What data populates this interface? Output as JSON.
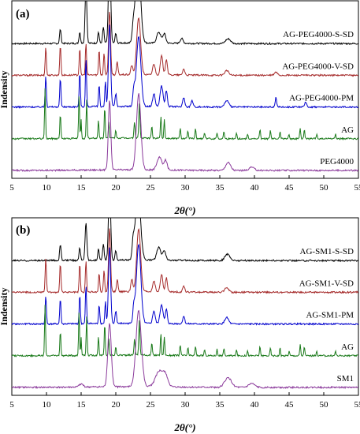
{
  "chart_data": [
    {
      "type": "line",
      "panel_label": "(a)",
      "xlabel": "2θ(°)",
      "ylabel": "Indensity",
      "xlim": [
        5,
        55
      ],
      "x_ticks": [
        5,
        10,
        15,
        20,
        25,
        30,
        35,
        40,
        45,
        50,
        55
      ],
      "grid": false,
      "legend": "labels above each trace, right side",
      "series": [
        {
          "name": "AG-PEG4000-S-SD",
          "color": "#000000",
          "baseline": 4.2,
          "peaks": [
            [
              12.0,
              0.45,
              0.15
            ],
            [
              14.8,
              0.35,
              0.15
            ],
            [
              15.7,
              1.8,
              0.18
            ],
            [
              17.5,
              0.35,
              0.15
            ],
            [
              18.2,
              0.5,
              0.15
            ],
            [
              19.1,
              3.0,
              0.22
            ],
            [
              20.0,
              0.3,
              0.15
            ],
            [
              22.5,
              0.4,
              0.2
            ],
            [
              23.2,
              2.8,
              0.5
            ],
            [
              26.2,
              0.35,
              0.4
            ],
            [
              27.0,
              0.3,
              0.3
            ],
            [
              29.5,
              0.15,
              0.3
            ],
            [
              36.2,
              0.15,
              0.5
            ]
          ]
        },
        {
          "name": "AG-PEG4000-V-SD",
          "color": "#a52a2a",
          "baseline": 3.2,
          "peaks": [
            [
              9.9,
              0.9,
              0.12
            ],
            [
              12.0,
              0.95,
              0.12
            ],
            [
              14.8,
              0.85,
              0.12
            ],
            [
              15.7,
              1.0,
              0.12
            ],
            [
              17.6,
              0.8,
              0.12
            ],
            [
              18.3,
              0.7,
              0.12
            ],
            [
              19.1,
              2.0,
              0.2
            ],
            [
              20.2,
              0.4,
              0.15
            ],
            [
              22.3,
              0.3,
              0.2
            ],
            [
              23.3,
              1.8,
              0.4
            ],
            [
              25.5,
              0.35,
              0.25
            ],
            [
              26.6,
              0.6,
              0.25
            ],
            [
              27.3,
              0.5,
              0.2
            ],
            [
              29.8,
              0.2,
              0.2
            ],
            [
              36.0,
              0.15,
              0.4
            ],
            [
              43.1,
              0.1,
              0.3
            ]
          ]
        },
        {
          "name": "AG-PEG4000-PM",
          "color": "#0000cd",
          "baseline": 2.2,
          "peaks": [
            [
              9.9,
              1.0,
              0.12
            ],
            [
              12.0,
              0.9,
              0.12
            ],
            [
              14.8,
              1.1,
              0.12
            ],
            [
              15.7,
              1.5,
              0.12
            ],
            [
              17.6,
              0.7,
              0.12
            ],
            [
              18.5,
              0.8,
              0.12
            ],
            [
              19.1,
              2.6,
              0.22
            ],
            [
              20.0,
              0.4,
              0.15
            ],
            [
              22.6,
              0.5,
              0.2
            ],
            [
              23.3,
              2.2,
              0.45
            ],
            [
              25.5,
              0.4,
              0.25
            ],
            [
              26.6,
              0.65,
              0.3
            ],
            [
              27.3,
              0.5,
              0.2
            ],
            [
              29.8,
              0.3,
              0.2
            ],
            [
              31.0,
              0.2,
              0.2
            ],
            [
              36.0,
              0.2,
              0.4
            ],
            [
              43.1,
              0.3,
              0.15
            ],
            [
              47.4,
              0.15,
              0.2
            ]
          ]
        },
        {
          "name": "AG",
          "color": "#1a7a1a",
          "baseline": 1.2,
          "peaks": [
            [
              9.8,
              1.6,
              0.1
            ],
            [
              12.0,
              0.8,
              0.1
            ],
            [
              14.7,
              1.4,
              0.1
            ],
            [
              15.0,
              0.6,
              0.08
            ],
            [
              15.8,
              1.2,
              0.1
            ],
            [
              17.5,
              0.6,
              0.1
            ],
            [
              18.4,
              1.0,
              0.1
            ],
            [
              19.0,
              0.5,
              0.1
            ],
            [
              20.0,
              0.25,
              0.1
            ],
            [
              22.7,
              0.5,
              0.12
            ],
            [
              23.4,
              1.1,
              0.12
            ],
            [
              25.2,
              0.4,
              0.1
            ],
            [
              26.5,
              0.7,
              0.1
            ],
            [
              27.0,
              0.6,
              0.1
            ],
            [
              29.3,
              0.35,
              0.1
            ],
            [
              30.4,
              0.25,
              0.1
            ],
            [
              31.5,
              0.3,
              0.1
            ],
            [
              32.8,
              0.2,
              0.1
            ],
            [
              34.6,
              0.2,
              0.1
            ],
            [
              35.6,
              0.25,
              0.1
            ],
            [
              37.4,
              0.2,
              0.1
            ],
            [
              39.0,
              0.15,
              0.1
            ],
            [
              40.8,
              0.3,
              0.1
            ],
            [
              42.3,
              0.25,
              0.1
            ],
            [
              43.7,
              0.25,
              0.1
            ],
            [
              45.0,
              0.15,
              0.1
            ],
            [
              46.6,
              0.35,
              0.1
            ],
            [
              47.2,
              0.3,
              0.1
            ],
            [
              49.0,
              0.15,
              0.1
            ],
            [
              51.7,
              0.15,
              0.1
            ]
          ]
        },
        {
          "name": "PEG4000",
          "color": "#8b3a9b",
          "baseline": 0.2,
          "peaks": [
            [
              19.1,
              2.2,
              0.25
            ],
            [
              23.3,
              2.4,
              0.45
            ],
            [
              26.3,
              0.4,
              0.5
            ],
            [
              27.2,
              0.3,
              0.3
            ],
            [
              36.2,
              0.25,
              0.5
            ],
            [
              39.6,
              0.1,
              0.5
            ]
          ]
        }
      ]
    },
    {
      "type": "line",
      "panel_label": "(b)",
      "xlabel": "2θ(°)",
      "ylabel": "Indensity",
      "xlim": [
        5,
        55
      ],
      "x_ticks": [
        5,
        10,
        15,
        20,
        25,
        30,
        35,
        40,
        45,
        50,
        55
      ],
      "grid": false,
      "legend": "labels above each trace, right side",
      "series": [
        {
          "name": "AG-SM1-S-SD",
          "color": "#000000",
          "baseline": 4.2,
          "peaks": [
            [
              12.0,
              0.5,
              0.15
            ],
            [
              14.8,
              0.4,
              0.15
            ],
            [
              15.7,
              1.2,
              0.18
            ],
            [
              17.5,
              0.35,
              0.15
            ],
            [
              18.2,
              0.5,
              0.15
            ],
            [
              19.1,
              2.4,
              0.22
            ],
            [
              20.0,
              0.3,
              0.15
            ],
            [
              22.5,
              0.5,
              0.2
            ],
            [
              23.2,
              2.3,
              0.5
            ],
            [
              26.2,
              0.4,
              0.4
            ],
            [
              27.0,
              0.3,
              0.3
            ],
            [
              36.1,
              0.2,
              0.5
            ]
          ]
        },
        {
          "name": "AG-SM1-V-SD",
          "color": "#a52a2a",
          "baseline": 3.2,
          "peaks": [
            [
              9.9,
              1.1,
              0.12
            ],
            [
              12.0,
              0.9,
              0.12
            ],
            [
              14.8,
              0.9,
              0.12
            ],
            [
              15.7,
              1.0,
              0.12
            ],
            [
              17.6,
              0.6,
              0.12
            ],
            [
              18.3,
              0.7,
              0.12
            ],
            [
              19.1,
              2.0,
              0.2
            ],
            [
              20.2,
              0.4,
              0.15
            ],
            [
              22.3,
              0.4,
              0.2
            ],
            [
              23.3,
              2.0,
              0.4
            ],
            [
              25.5,
              0.35,
              0.25
            ],
            [
              26.6,
              0.55,
              0.25
            ],
            [
              27.3,
              0.45,
              0.2
            ],
            [
              29.8,
              0.2,
              0.2
            ],
            [
              36.0,
              0.15,
              0.4
            ]
          ]
        },
        {
          "name": "AG-SM1-PM",
          "color": "#0000cd",
          "baseline": 2.2,
          "peaks": [
            [
              9.9,
              0.9,
              0.12
            ],
            [
              12.0,
              0.8,
              0.12
            ],
            [
              14.8,
              0.9,
              0.12
            ],
            [
              15.7,
              1.2,
              0.12
            ],
            [
              17.6,
              0.6,
              0.12
            ],
            [
              18.5,
              0.7,
              0.12
            ],
            [
              19.1,
              2.4,
              0.22
            ],
            [
              20.0,
              0.4,
              0.15
            ],
            [
              22.6,
              0.5,
              0.2
            ],
            [
              23.3,
              2.5,
              0.45
            ],
            [
              25.5,
              0.4,
              0.25
            ],
            [
              26.6,
              0.6,
              0.3
            ],
            [
              27.3,
              0.45,
              0.2
            ],
            [
              29.8,
              0.25,
              0.2
            ],
            [
              36.0,
              0.2,
              0.4
            ]
          ]
        },
        {
          "name": "AG",
          "color": "#1a7a1a",
          "baseline": 1.2,
          "peaks": [
            [
              9.8,
              1.6,
              0.1
            ],
            [
              12.0,
              0.8,
              0.1
            ],
            [
              14.7,
              1.4,
              0.1
            ],
            [
              15.0,
              0.6,
              0.08
            ],
            [
              15.8,
              1.2,
              0.1
            ],
            [
              17.5,
              0.6,
              0.1
            ],
            [
              18.4,
              1.0,
              0.1
            ],
            [
              19.0,
              0.5,
              0.1
            ],
            [
              20.0,
              0.25,
              0.1
            ],
            [
              22.7,
              0.5,
              0.12
            ],
            [
              23.4,
              1.1,
              0.12
            ],
            [
              25.2,
              0.4,
              0.1
            ],
            [
              26.5,
              0.7,
              0.1
            ],
            [
              27.0,
              0.6,
              0.1
            ],
            [
              29.3,
              0.35,
              0.1
            ],
            [
              30.4,
              0.25,
              0.1
            ],
            [
              31.5,
              0.3,
              0.1
            ],
            [
              32.8,
              0.2,
              0.1
            ],
            [
              34.6,
              0.2,
              0.1
            ],
            [
              35.6,
              0.25,
              0.1
            ],
            [
              37.4,
              0.2,
              0.1
            ],
            [
              39.0,
              0.15,
              0.1
            ],
            [
              40.8,
              0.3,
              0.1
            ],
            [
              42.3,
              0.25,
              0.1
            ],
            [
              43.7,
              0.25,
              0.1
            ],
            [
              45.0,
              0.15,
              0.1
            ],
            [
              46.6,
              0.35,
              0.1
            ],
            [
              47.2,
              0.3,
              0.1
            ],
            [
              49.0,
              0.15,
              0.1
            ],
            [
              51.7,
              0.15,
              0.1
            ]
          ]
        },
        {
          "name": "SM1",
          "color": "#8b3a9b",
          "baseline": 0.2,
          "peaks": [
            [
              15.0,
              0.1,
              0.4
            ],
            [
              19.1,
              2.0,
              0.35
            ],
            [
              23.3,
              2.4,
              0.55
            ],
            [
              26.3,
              0.5,
              0.8
            ],
            [
              27.2,
              0.3,
              0.5
            ],
            [
              36.2,
              0.3,
              0.7
            ],
            [
              39.6,
              0.12,
              0.6
            ]
          ]
        }
      ]
    }
  ]
}
